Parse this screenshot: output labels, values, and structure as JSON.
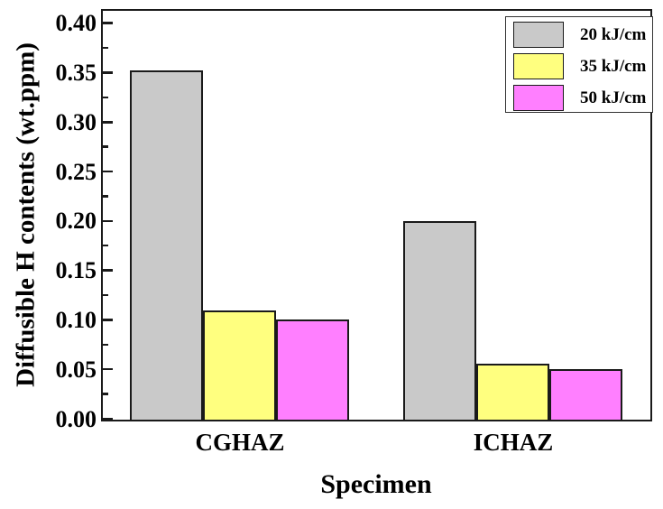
{
  "chart_data": {
    "type": "bar",
    "title": "",
    "xlabel": "Specimen",
    "ylabel": "Diffusible H contents (wt.ppm)",
    "categories": [
      "CGHAZ",
      "ICHAZ"
    ],
    "series": [
      {
        "name": "20 kJ/cm",
        "color": "#c9c9c9",
        "values": [
          0.353,
          0.201
        ]
      },
      {
        "name": "35 kJ/cm",
        "color": "#ffff7f",
        "values": [
          0.11,
          0.057
        ]
      },
      {
        "name": "50 kJ/cm",
        "color": "#ff7fff",
        "values": [
          0.101,
          0.051
        ]
      }
    ],
    "ylim": [
      0,
      0.4125
    ],
    "ytick_values": [
      0.0,
      0.05,
      0.1,
      0.15,
      0.2,
      0.25,
      0.3,
      0.35,
      0.4
    ],
    "ytick_labels": [
      "0.00",
      "0.05",
      "0.10",
      "0.15",
      "0.20",
      "0.25",
      "0.30",
      "0.35",
      "0.40"
    ],
    "minor_ytick_values": [
      0.025,
      0.075,
      0.125,
      0.175,
      0.225,
      0.275,
      0.325,
      0.375
    ],
    "grid": false,
    "legend_position": "top-right",
    "bar_edge_color": "#1a1a1a",
    "axis_color": "#1a1a1a",
    "background_color": "#ffffff"
  }
}
